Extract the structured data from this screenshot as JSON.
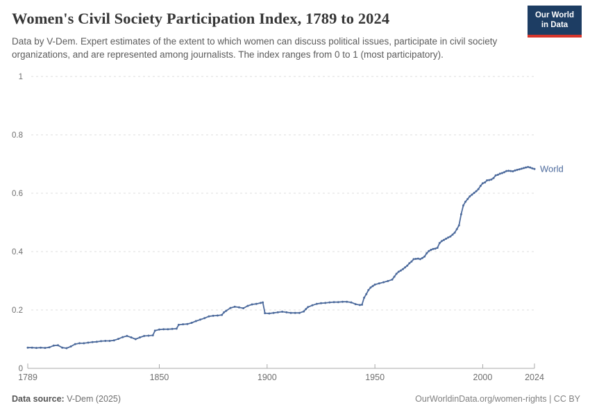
{
  "header": {
    "title": "Women's Civil Society Participation Index, 1789 to 2024",
    "subtitle": "Data by V-Dem. Expert estimates of the extent to which women can discuss political issues, participate in civil society organizations, and are represented among journalists. The index ranges from 0 to 1 (most participatory).",
    "logo": {
      "line1": "Our World",
      "line2": "in Data",
      "bg_color": "#1d3d63",
      "accent_color": "#d7352b"
    }
  },
  "footer": {
    "source_label": "Data source:",
    "source_value": " V-Dem (2025)",
    "link": "OurWorldinData.org/women-rights | CC BY"
  },
  "chart_data": {
    "type": "line",
    "title": "Women's Civil Society Participation Index, 1789 to 2024",
    "xlabel": "",
    "ylabel": "",
    "xlim": [
      1789,
      2024
    ],
    "ylim": [
      0,
      1
    ],
    "xticks": [
      1789,
      1850,
      1900,
      1950,
      2000,
      2024
    ],
    "yticks": [
      0,
      0.2,
      0.4,
      0.6,
      0.8,
      1
    ],
    "grid": "horizontal-dashed",
    "legend_position": "end-of-line-label",
    "line_color": "#4c6a9c",
    "grid_color": "#dcdcdc",
    "axis_color": "#a8a8a8",
    "tick_label_color": "#6e6e6e",
    "series": [
      {
        "name": "World",
        "points": [
          [
            1789,
            0.071
          ],
          [
            1791,
            0.071
          ],
          [
            1793,
            0.07
          ],
          [
            1795,
            0.071
          ],
          [
            1797,
            0.07
          ],
          [
            1799,
            0.072
          ],
          [
            1801,
            0.078
          ],
          [
            1803,
            0.079
          ],
          [
            1805,
            0.071
          ],
          [
            1807,
            0.069
          ],
          [
            1809,
            0.075
          ],
          [
            1811,
            0.083
          ],
          [
            1813,
            0.086
          ],
          [
            1815,
            0.086
          ],
          [
            1817,
            0.088
          ],
          [
            1819,
            0.09
          ],
          [
            1821,
            0.091
          ],
          [
            1823,
            0.093
          ],
          [
            1825,
            0.094
          ],
          [
            1827,
            0.094
          ],
          [
            1829,
            0.096
          ],
          [
            1831,
            0.101
          ],
          [
            1833,
            0.107
          ],
          [
            1835,
            0.111
          ],
          [
            1837,
            0.106
          ],
          [
            1839,
            0.1
          ],
          [
            1841,
            0.106
          ],
          [
            1843,
            0.111
          ],
          [
            1845,
            0.112
          ],
          [
            1847,
            0.113
          ],
          [
            1848,
            0.129
          ],
          [
            1850,
            0.133
          ],
          [
            1852,
            0.134
          ],
          [
            1854,
            0.134
          ],
          [
            1856,
            0.135
          ],
          [
            1858,
            0.136
          ],
          [
            1859,
            0.149
          ],
          [
            1861,
            0.151
          ],
          [
            1863,
            0.152
          ],
          [
            1865,
            0.156
          ],
          [
            1867,
            0.162
          ],
          [
            1869,
            0.167
          ],
          [
            1871,
            0.172
          ],
          [
            1873,
            0.178
          ],
          [
            1875,
            0.18
          ],
          [
            1877,
            0.181
          ],
          [
            1879,
            0.183
          ],
          [
            1880,
            0.192
          ],
          [
            1881,
            0.197
          ],
          [
            1883,
            0.207
          ],
          [
            1885,
            0.211
          ],
          [
            1887,
            0.209
          ],
          [
            1889,
            0.206
          ],
          [
            1891,
            0.214
          ],
          [
            1893,
            0.219
          ],
          [
            1895,
            0.221
          ],
          [
            1897,
            0.224
          ],
          [
            1898,
            0.226
          ],
          [
            1899,
            0.189
          ],
          [
            1901,
            0.188
          ],
          [
            1903,
            0.19
          ],
          [
            1905,
            0.192
          ],
          [
            1907,
            0.194
          ],
          [
            1909,
            0.192
          ],
          [
            1911,
            0.19
          ],
          [
            1913,
            0.19
          ],
          [
            1915,
            0.19
          ],
          [
            1917,
            0.195
          ],
          [
            1918,
            0.203
          ],
          [
            1919,
            0.21
          ],
          [
            1921,
            0.216
          ],
          [
            1923,
            0.221
          ],
          [
            1925,
            0.223
          ],
          [
            1927,
            0.224
          ],
          [
            1929,
            0.226
          ],
          [
            1931,
            0.227
          ],
          [
            1933,
            0.227
          ],
          [
            1935,
            0.228
          ],
          [
            1937,
            0.228
          ],
          [
            1939,
            0.226
          ],
          [
            1941,
            0.22
          ],
          [
            1943,
            0.217
          ],
          [
            1944,
            0.218
          ],
          [
            1945,
            0.242
          ],
          [
            1946,
            0.254
          ],
          [
            1947,
            0.268
          ],
          [
            1948,
            0.277
          ],
          [
            1949,
            0.282
          ],
          [
            1950,
            0.287
          ],
          [
            1952,
            0.291
          ],
          [
            1954,
            0.295
          ],
          [
            1956,
            0.299
          ],
          [
            1958,
            0.304
          ],
          [
            1959,
            0.314
          ],
          [
            1960,
            0.324
          ],
          [
            1961,
            0.331
          ],
          [
            1962,
            0.335
          ],
          [
            1963,
            0.34
          ],
          [
            1964,
            0.346
          ],
          [
            1965,
            0.352
          ],
          [
            1966,
            0.36
          ],
          [
            1967,
            0.366
          ],
          [
            1968,
            0.374
          ],
          [
            1969,
            0.375
          ],
          [
            1970,
            0.376
          ],
          [
            1971,
            0.374
          ],
          [
            1972,
            0.378
          ],
          [
            1973,
            0.383
          ],
          [
            1974,
            0.394
          ],
          [
            1975,
            0.402
          ],
          [
            1976,
            0.406
          ],
          [
            1977,
            0.409
          ],
          [
            1978,
            0.41
          ],
          [
            1979,
            0.413
          ],
          [
            1980,
            0.429
          ],
          [
            1981,
            0.436
          ],
          [
            1982,
            0.44
          ],
          [
            1983,
            0.444
          ],
          [
            1984,
            0.448
          ],
          [
            1985,
            0.452
          ],
          [
            1986,
            0.458
          ],
          [
            1987,
            0.465
          ],
          [
            1988,
            0.477
          ],
          [
            1989,
            0.49
          ],
          [
            1990,
            0.528
          ],
          [
            1991,
            0.558
          ],
          [
            1992,
            0.571
          ],
          [
            1993,
            0.58
          ],
          [
            1994,
            0.589
          ],
          [
            1995,
            0.595
          ],
          [
            1996,
            0.601
          ],
          [
            1997,
            0.607
          ],
          [
            1998,
            0.614
          ],
          [
            1999,
            0.625
          ],
          [
            2000,
            0.634
          ],
          [
            2001,
            0.637
          ],
          [
            2002,
            0.644
          ],
          [
            2003,
            0.645
          ],
          [
            2004,
            0.647
          ],
          [
            2005,
            0.652
          ],
          [
            2006,
            0.661
          ],
          [
            2007,
            0.663
          ],
          [
            2008,
            0.667
          ],
          [
            2009,
            0.669
          ],
          [
            2010,
            0.672
          ],
          [
            2011,
            0.676
          ],
          [
            2012,
            0.677
          ],
          [
            2013,
            0.676
          ],
          [
            2014,
            0.675
          ],
          [
            2015,
            0.678
          ],
          [
            2016,
            0.68
          ],
          [
            2017,
            0.682
          ],
          [
            2018,
            0.684
          ],
          [
            2019,
            0.686
          ],
          [
            2020,
            0.688
          ],
          [
            2021,
            0.69
          ],
          [
            2022,
            0.688
          ],
          [
            2023,
            0.685
          ],
          [
            2024,
            0.683
          ]
        ]
      }
    ]
  }
}
